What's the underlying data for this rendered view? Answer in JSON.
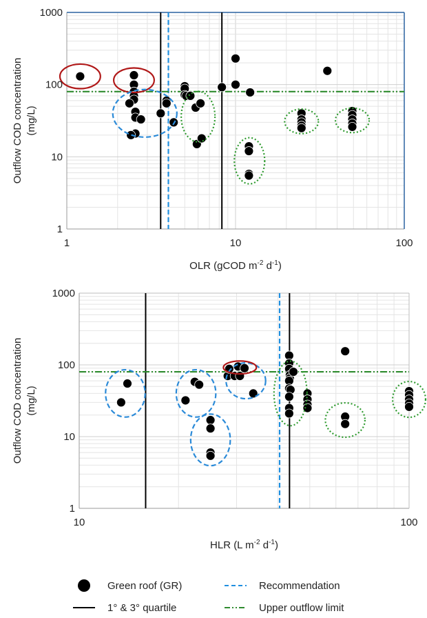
{
  "chart_data": [
    {
      "type": "scatter",
      "xlabel": {
        "pre": "OLR (gCOD m",
        "sup1": "-2",
        "mid": " d",
        "sup2": "-1",
        "post": ")"
      },
      "ylabel_line1": "Outflow COD concentration",
      "ylabel_line2": "(mg/L)",
      "x_scale": "log",
      "y_scale": "log",
      "xlim": [
        1,
        100
      ],
      "ylim": [
        1,
        1000
      ],
      "x_ticks": [
        1,
        10,
        100
      ],
      "x_tick_labels": [
        "1",
        "10",
        "100"
      ],
      "y_ticks": [
        1,
        10,
        100,
        1000
      ],
      "y_tick_labels": [
        "1",
        "10",
        "100",
        "1000"
      ],
      "grid": "log minor and major",
      "series": [
        {
          "name": "Green roof (GR)",
          "points": [
            [
              1.2,
              130
            ],
            [
              2.5,
              135
            ],
            [
              2.5,
              100
            ],
            [
              2.5,
              80
            ],
            [
              2.5,
              70
            ],
            [
              2.5,
              62
            ],
            [
              2.55,
              42
            ],
            [
              2.55,
              35
            ],
            [
              2.55,
              21
            ],
            [
              2.35,
              55
            ],
            [
              2.4,
              20
            ],
            [
              2.75,
              33
            ],
            [
              3.6,
              40
            ],
            [
              3.9,
              60
            ],
            [
              3.9,
              55
            ],
            [
              4.3,
              30
            ],
            [
              5.0,
              95
            ],
            [
              5.0,
              88
            ],
            [
              5.0,
              72
            ],
            [
              5.1,
              70
            ],
            [
              5.4,
              70
            ],
            [
              5.8,
              48
            ],
            [
              6.2,
              55
            ],
            [
              5.9,
              15
            ],
            [
              6.3,
              18
            ],
            [
              8.3,
              92
            ],
            [
              10.0,
              230
            ],
            [
              10.0,
              100
            ],
            [
              12.2,
              78
            ],
            [
              12.0,
              14
            ],
            [
              12.0,
              12
            ],
            [
              12.0,
              5.8
            ],
            [
              12.0,
              5.5
            ],
            [
              24.6,
              40
            ],
            [
              24.6,
              33
            ],
            [
              24.6,
              30
            ],
            [
              24.6,
              27
            ],
            [
              24.6,
              25
            ],
            [
              35.0,
              155
            ],
            [
              49.2,
              43
            ],
            [
              49.2,
              38
            ],
            [
              49.2,
              33
            ],
            [
              49.2,
              29
            ],
            [
              49.2,
              26
            ]
          ]
        }
      ],
      "reference_lines": {
        "quartiles": [
          3.6,
          8.3
        ],
        "recommendation": 4.0,
        "upper_outflow_limit": 80
      },
      "ellipses": [
        {
          "color": "red",
          "cx": 1.2,
          "cy": 130,
          "rx": 0.12,
          "ry": 0.17,
          "style": "solid"
        },
        {
          "color": "red",
          "cx": 2.5,
          "cy": 115,
          "rx": 0.12,
          "ry": 0.17,
          "style": "solid"
        },
        {
          "color": "blue",
          "cx": 2.9,
          "cy": 40,
          "rx": 0.19,
          "ry": 0.33,
          "style": "dashed"
        },
        {
          "color": "green",
          "cx": 6.0,
          "cy": 36,
          "rx": 0.1,
          "ry": 0.35,
          "style": "dotted"
        },
        {
          "color": "green",
          "cx": 12.1,
          "cy": 8.8,
          "rx": 0.09,
          "ry": 0.32,
          "style": "dotted"
        },
        {
          "color": "green",
          "cx": 24.6,
          "cy": 31,
          "rx": 0.1,
          "ry": 0.17,
          "style": "dotted"
        },
        {
          "color": "green",
          "cx": 49.2,
          "cy": 32,
          "rx": 0.1,
          "ry": 0.17,
          "style": "dotted"
        }
      ]
    },
    {
      "type": "scatter",
      "xlabel": {
        "pre": "HLR (L m",
        "sup1": "-2",
        "mid": " d",
        "sup2": "-1",
        "post": ")"
      },
      "ylabel_line1": "Outflow COD concentration",
      "ylabel_line2": "(mg/L)",
      "x_scale": "log",
      "y_scale": "log",
      "xlim": [
        10,
        100
      ],
      "ylim": [
        1,
        1000
      ],
      "x_ticks": [
        10,
        100
      ],
      "x_tick_labels": [
        "10",
        "100"
      ],
      "y_ticks": [
        1,
        10,
        100,
        1000
      ],
      "y_tick_labels": [
        "1",
        "10",
        "100",
        "1000"
      ],
      "grid": "log minor and major",
      "series": [
        {
          "name": "Green roof (GR)",
          "points": [
            [
              13.4,
              30
            ],
            [
              14.0,
              55
            ],
            [
              21.0,
              32
            ],
            [
              22.4,
              58
            ],
            [
              23.1,
              53
            ],
            [
              25.0,
              17
            ],
            [
              25.0,
              13
            ],
            [
              25.0,
              6
            ],
            [
              25.0,
              5.4
            ],
            [
              28.2,
              70
            ],
            [
              28.5,
              88
            ],
            [
              29.6,
              70
            ],
            [
              30.3,
              95
            ],
            [
              30.7,
              70
            ],
            [
              31.7,
              90
            ],
            [
              33.7,
              40
            ],
            [
              43.3,
              135
            ],
            [
              43.3,
              105
            ],
            [
              43.3,
              88
            ],
            [
              43.5,
              72
            ],
            [
              43.5,
              65
            ],
            [
              43.3,
              60
            ],
            [
              43.3,
              47
            ],
            [
              43.7,
              45
            ],
            [
              43.3,
              36
            ],
            [
              43.3,
              25
            ],
            [
              43.3,
              21
            ],
            [
              44.6,
              80
            ],
            [
              49.2,
              40
            ],
            [
              49.2,
              33
            ],
            [
              49.2,
              28
            ],
            [
              49.2,
              25
            ],
            [
              64.0,
              155
            ],
            [
              64.0,
              19
            ],
            [
              64.0,
              15
            ],
            [
              100.0,
              43
            ],
            [
              100.0,
              38
            ],
            [
              100.0,
              33
            ],
            [
              100.0,
              29
            ],
            [
              100.0,
              26
            ]
          ]
        }
      ],
      "reference_lines": {
        "quartiles": [
          15.9,
          43.4
        ],
        "recommendation": 40.5,
        "upper_outflow_limit": 80
      },
      "ellipses": [
        {
          "color": "blue",
          "cx": 13.8,
          "cy": 40,
          "rx": 0.06,
          "ry": 0.33,
          "style": "dashed"
        },
        {
          "color": "blue",
          "cx": 22.6,
          "cy": 40,
          "rx": 0.06,
          "ry": 0.33,
          "style": "dashed"
        },
        {
          "color": "blue",
          "cx": 25.0,
          "cy": 9,
          "rx": 0.06,
          "ry": 0.36,
          "style": "dashed"
        },
        {
          "color": "blue",
          "cx": 32.0,
          "cy": 60,
          "rx": 0.06,
          "ry": 0.25,
          "style": "dashed"
        },
        {
          "color": "red",
          "cx": 30.7,
          "cy": 92,
          "rx": 0.05,
          "ry": 0.09,
          "style": "solid"
        },
        {
          "color": "green",
          "cx": 43.7,
          "cy": 40,
          "rx": 0.05,
          "ry": 0.45,
          "style": "dotted"
        },
        {
          "color": "green",
          "cx": 64.0,
          "cy": 17,
          "rx": 0.06,
          "ry": 0.24,
          "style": "dotted"
        },
        {
          "color": "green",
          "cx": 100.0,
          "cy": 33,
          "rx": 0.05,
          "ry": 0.25,
          "style": "dotted"
        }
      ]
    }
  ],
  "legend": {
    "green_roof": "Green roof (GR)",
    "recommendation": "Recommendation",
    "quartile": "1° & 3° quartile",
    "upper_limit": "Upper outflow limit"
  },
  "colors": {
    "point": "#000000",
    "quartile": "#000000",
    "recommendation": "#1f8fe0",
    "upper_limit": "#2e8b2e",
    "ellipse_red": "#b01818",
    "ellipse_blue": "#2a8ad8",
    "ellipse_green": "#2e9a2e",
    "border_top": "#2a62a0"
  }
}
